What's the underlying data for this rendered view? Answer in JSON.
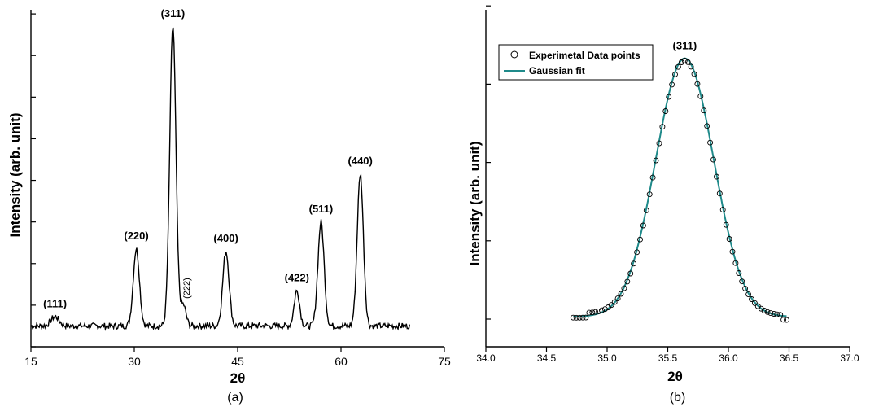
{
  "chart_data": [
    {
      "type": "line",
      "panel_label": "(a)",
      "xlabel": "2θ",
      "ylabel": "Intensity (arb. unit)",
      "xlim": [
        15,
        75
      ],
      "x_ticks": [
        15,
        30,
        45,
        60,
        75
      ],
      "y_ticks_labeled": false,
      "grid": false,
      "baseline": 1.0,
      "noise": 0.15,
      "x_end": 70,
      "peaks": [
        {
          "label": "(111)",
          "x": 18.5,
          "height": 0.45,
          "width": 0.6
        },
        {
          "label": "(220)",
          "x": 30.3,
          "height": 3.7,
          "width": 0.45
        },
        {
          "label": "(311)",
          "x": 35.6,
          "height": 14.4,
          "width": 0.45
        },
        {
          "label": "(222)",
          "x": 37.1,
          "height": 1.0,
          "width": 0.4
        },
        {
          "label": "(400)",
          "x": 43.3,
          "height": 3.6,
          "width": 0.45
        },
        {
          "label": "(422)",
          "x": 53.6,
          "height": 1.7,
          "width": 0.4
        },
        {
          "label": "(511)",
          "x": 57.1,
          "height": 5.0,
          "width": 0.45
        },
        {
          "label": "(440)",
          "x": 62.8,
          "height": 7.3,
          "width": 0.45
        }
      ]
    },
    {
      "type": "scatter",
      "panel_label": "(b)",
      "xlabel": "2θ",
      "ylabel": "Intensity (arb. unit)",
      "xlim": [
        34.0,
        37.0
      ],
      "x_ticks": [
        "34.0",
        "34.5",
        "35.0",
        "35.5",
        "36.0",
        "36.5",
        "37.0"
      ],
      "y_ticks_labeled": false,
      "peak_label": "(311)",
      "grid": false,
      "legend_position": "top-left",
      "series": [
        {
          "name": "Experimetal Data points",
          "style": "open-circles",
          "x_start": 34.72,
          "x_end": 36.48,
          "count": 68
        },
        {
          "name": "Gaussian fit",
          "style": "line",
          "color": "#1f8a8a",
          "center": 35.64,
          "sigma": 0.24,
          "amplitude": 3.3,
          "offset": 0.0
        }
      ]
    }
  ]
}
